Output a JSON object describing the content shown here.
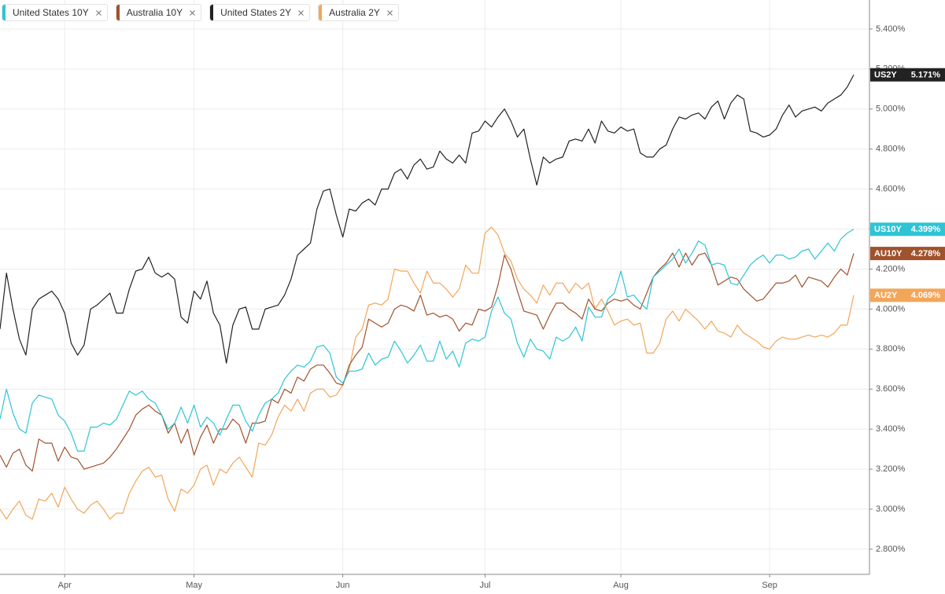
{
  "chart_data": {
    "type": "line",
    "categories": [
      null,
      null,
      null,
      null,
      null,
      null,
      null,
      null,
      null,
      null,
      "Apr",
      null,
      null,
      null,
      null,
      null,
      null,
      null,
      null,
      null,
      null,
      null,
      null,
      null,
      null,
      null,
      null,
      null,
      null,
      null,
      "May",
      null,
      null,
      null,
      null,
      null,
      null,
      null,
      null,
      null,
      null,
      null,
      null,
      null,
      null,
      null,
      null,
      null,
      null,
      null,
      null,
      null,
      null,
      "Jun",
      null,
      null,
      null,
      null,
      null,
      null,
      null,
      null,
      null,
      null,
      null,
      null,
      null,
      null,
      null,
      null,
      null,
      null,
      null,
      null,
      null,
      "Jul",
      null,
      null,
      null,
      null,
      null,
      null,
      null,
      null,
      null,
      null,
      null,
      null,
      null,
      null,
      null,
      null,
      null,
      null,
      null,
      null,
      "Aug",
      null,
      null,
      null,
      null,
      null,
      null,
      null,
      null,
      null,
      null,
      null,
      null,
      null,
      null,
      null,
      null,
      null,
      null,
      null,
      null,
      null,
      null,
      "Sep",
      null,
      null,
      null,
      null,
      null,
      null,
      null,
      null,
      null,
      null,
      null,
      null,
      null
    ],
    "ylim": [
      2.674,
      5.545
    ],
    "yticks": [
      {
        "value": 2.8,
        "label": "2.800%"
      },
      {
        "value": 3.0,
        "label": "3.000%"
      },
      {
        "value": 3.2,
        "label": "3.200%"
      },
      {
        "value": 3.4,
        "label": "3.400%"
      },
      {
        "value": 3.6,
        "label": "3.600%"
      },
      {
        "value": 3.8,
        "label": "3.800%"
      },
      {
        "value": 4.0,
        "label": "4.000%"
      },
      {
        "value": 4.2,
        "label": "4.200%"
      },
      {
        "value": 4.4,
        "label": "4.400%"
      },
      {
        "value": 4.6,
        "label": "4.600%"
      },
      {
        "value": 4.8,
        "label": "4.800%"
      },
      {
        "value": 5.0,
        "label": "5.000%"
      },
      {
        "value": 5.2,
        "label": "5.200%"
      },
      {
        "value": 5.4,
        "label": "5.400%"
      }
    ],
    "grid": true,
    "series": [
      {
        "name": "United States 10Y",
        "color": "#2ec4d6",
        "badge": {
          "label": "US10Y",
          "value": 4.399,
          "value_label": "4.399%"
        },
        "values": [
          3.45,
          3.6,
          3.48,
          3.4,
          3.38,
          3.53,
          3.57,
          3.56,
          3.55,
          3.47,
          3.44,
          3.38,
          3.29,
          3.29,
          3.41,
          3.41,
          3.43,
          3.42,
          3.45,
          3.52,
          3.59,
          3.57,
          3.59,
          3.55,
          3.53,
          3.47,
          3.4,
          3.43,
          3.51,
          3.43,
          3.52,
          3.41,
          3.46,
          3.43,
          3.37,
          3.45,
          3.52,
          3.52,
          3.44,
          3.39,
          3.47,
          3.53,
          3.55,
          3.58,
          3.65,
          3.69,
          3.72,
          3.71,
          3.74,
          3.81,
          3.82,
          3.78,
          3.66,
          3.63,
          3.69,
          3.69,
          3.7,
          3.78,
          3.72,
          3.75,
          3.76,
          3.84,
          3.79,
          3.73,
          3.77,
          3.82,
          3.74,
          3.74,
          3.84,
          3.75,
          3.79,
          3.71,
          3.83,
          3.85,
          3.84,
          3.86,
          3.99,
          4.06,
          3.98,
          3.95,
          3.83,
          3.76,
          3.85,
          3.8,
          3.79,
          3.75,
          3.86,
          3.84,
          3.86,
          3.91,
          3.84,
          4.01,
          3.96,
          3.96,
          4.05,
          4.08,
          4.19,
          4.06,
          4.07,
          4.03,
          4.0,
          4.16,
          4.19,
          4.22,
          4.25,
          4.3,
          4.23,
          4.28,
          4.34,
          4.32,
          4.22,
          4.23,
          4.22,
          4.13,
          4.12,
          4.17,
          4.22,
          4.25,
          4.27,
          4.23,
          4.27,
          4.27,
          4.25,
          4.26,
          4.29,
          4.3,
          4.25,
          4.29,
          4.33,
          4.29,
          4.35,
          4.38,
          4.399
        ]
      },
      {
        "name": "Australia 10Y",
        "color": "#a0522d",
        "badge": {
          "label": "AU10Y",
          "value": 4.278,
          "value_label": "4.278%"
        },
        "values": [
          3.27,
          3.21,
          3.28,
          3.3,
          3.22,
          3.19,
          3.35,
          3.33,
          3.33,
          3.24,
          3.31,
          3.26,
          3.25,
          3.2,
          3.21,
          3.22,
          3.23,
          3.26,
          3.3,
          3.35,
          3.4,
          3.47,
          3.5,
          3.52,
          3.49,
          3.47,
          3.38,
          3.43,
          3.33,
          3.4,
          3.27,
          3.36,
          3.42,
          3.33,
          3.4,
          3.4,
          3.45,
          3.42,
          3.33,
          3.43,
          3.43,
          3.44,
          3.55,
          3.53,
          3.6,
          3.58,
          3.66,
          3.64,
          3.7,
          3.72,
          3.72,
          3.68,
          3.63,
          3.62,
          3.72,
          3.77,
          3.81,
          3.95,
          3.93,
          3.91,
          3.93,
          4.0,
          4.02,
          4.01,
          3.99,
          4.07,
          3.97,
          3.98,
          3.96,
          3.97,
          3.95,
          3.89,
          3.93,
          3.92,
          4.0,
          3.99,
          4.01,
          4.12,
          4.27,
          4.2,
          4.09,
          3.99,
          3.98,
          3.97,
          3.9,
          3.97,
          4.03,
          4.03,
          4.0,
          3.98,
          3.95,
          4.05,
          4.0,
          3.99,
          4.03,
          4.05,
          4.04,
          4.05,
          4.02,
          4.0,
          4.08,
          4.16,
          4.2,
          4.23,
          4.28,
          4.21,
          4.28,
          4.22,
          4.27,
          4.28,
          4.22,
          4.12,
          4.14,
          4.16,
          4.15,
          4.1,
          4.07,
          4.04,
          4.05,
          4.09,
          4.13,
          4.13,
          4.14,
          4.17,
          4.11,
          4.16,
          4.15,
          4.14,
          4.11,
          4.16,
          4.2,
          4.17,
          4.278
        ]
      },
      {
        "name": "United States 2Y",
        "color": "#222222",
        "badge": {
          "label": "US2Y",
          "value": 5.171,
          "value_label": "5.171%"
        },
        "values": [
          3.9,
          4.18,
          4.0,
          3.85,
          3.77,
          4.0,
          4.05,
          4.07,
          4.09,
          4.05,
          3.98,
          3.83,
          3.77,
          3.82,
          4.0,
          4.02,
          4.05,
          4.08,
          3.98,
          3.98,
          4.1,
          4.19,
          4.2,
          4.26,
          4.18,
          4.16,
          4.18,
          4.15,
          3.96,
          3.93,
          4.09,
          4.05,
          4.14,
          3.98,
          3.92,
          3.73,
          3.92,
          4.0,
          4.01,
          3.9,
          3.9,
          4.0,
          4.01,
          4.02,
          4.07,
          4.15,
          4.27,
          4.3,
          4.33,
          4.5,
          4.59,
          4.6,
          4.47,
          4.36,
          4.5,
          4.49,
          4.53,
          4.55,
          4.52,
          4.6,
          4.6,
          4.68,
          4.7,
          4.65,
          4.72,
          4.75,
          4.7,
          4.71,
          4.79,
          4.75,
          4.73,
          4.77,
          4.73,
          4.88,
          4.89,
          4.94,
          4.91,
          4.96,
          5.0,
          4.94,
          4.86,
          4.9,
          4.75,
          4.62,
          4.76,
          4.73,
          4.75,
          4.76,
          4.84,
          4.85,
          4.84,
          4.9,
          4.83,
          4.94,
          4.89,
          4.88,
          4.91,
          4.89,
          4.9,
          4.78,
          4.76,
          4.76,
          4.8,
          4.82,
          4.9,
          4.96,
          4.95,
          4.97,
          4.98,
          4.95,
          5.01,
          5.04,
          4.95,
          5.03,
          5.07,
          5.05,
          4.89,
          4.88,
          4.86,
          4.87,
          4.9,
          4.97,
          5.02,
          4.96,
          4.99,
          5.0,
          5.01,
          4.99,
          5.03,
          5.05,
          5.07,
          5.11,
          5.171
        ]
      },
      {
        "name": "Australia 2Y",
        "color": "#f2a65a",
        "badge": {
          "label": "AU2Y",
          "value": 4.069,
          "value_label": "4.069%"
        },
        "values": [
          3.0,
          2.95,
          3.0,
          3.04,
          2.97,
          2.95,
          3.05,
          3.04,
          3.08,
          3.01,
          3.11,
          3.05,
          3.0,
          2.98,
          3.02,
          3.04,
          3.0,
          2.95,
          2.98,
          2.98,
          3.08,
          3.14,
          3.19,
          3.21,
          3.16,
          3.17,
          3.05,
          2.99,
          3.1,
          3.08,
          3.12,
          3.2,
          3.22,
          3.12,
          3.2,
          3.18,
          3.23,
          3.26,
          3.21,
          3.16,
          3.33,
          3.32,
          3.37,
          3.46,
          3.52,
          3.49,
          3.55,
          3.49,
          3.58,
          3.6,
          3.6,
          3.56,
          3.57,
          3.62,
          3.7,
          3.86,
          3.9,
          4.02,
          4.03,
          4.02,
          4.05,
          4.2,
          4.19,
          4.19,
          4.13,
          4.08,
          4.19,
          4.13,
          4.13,
          4.1,
          4.06,
          4.1,
          4.22,
          4.18,
          4.18,
          4.38,
          4.41,
          4.37,
          4.28,
          4.24,
          4.15,
          4.1,
          4.07,
          4.03,
          4.12,
          4.07,
          4.13,
          4.13,
          4.08,
          4.13,
          4.1,
          4.13,
          4.0,
          4.05,
          3.99,
          3.92,
          3.94,
          3.95,
          3.92,
          3.93,
          3.78,
          3.78,
          3.83,
          3.95,
          3.99,
          3.94,
          4.0,
          3.97,
          3.94,
          3.9,
          3.94,
          3.89,
          3.88,
          3.86,
          3.92,
          3.88,
          3.86,
          3.84,
          3.81,
          3.8,
          3.84,
          3.86,
          3.85,
          3.85,
          3.86,
          3.87,
          3.86,
          3.87,
          3.86,
          3.88,
          3.92,
          3.92,
          4.069
        ]
      }
    ]
  }
}
